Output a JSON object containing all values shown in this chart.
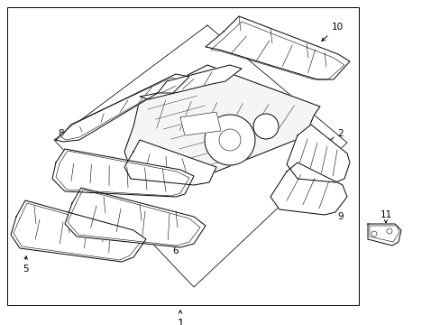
{
  "figure_width": 4.89,
  "figure_height": 3.6,
  "dpi": 100,
  "bg": "#ffffff",
  "lc": "#000000",
  "lw": 0.7,
  "tlw": 0.4,
  "fs": 7.5
}
